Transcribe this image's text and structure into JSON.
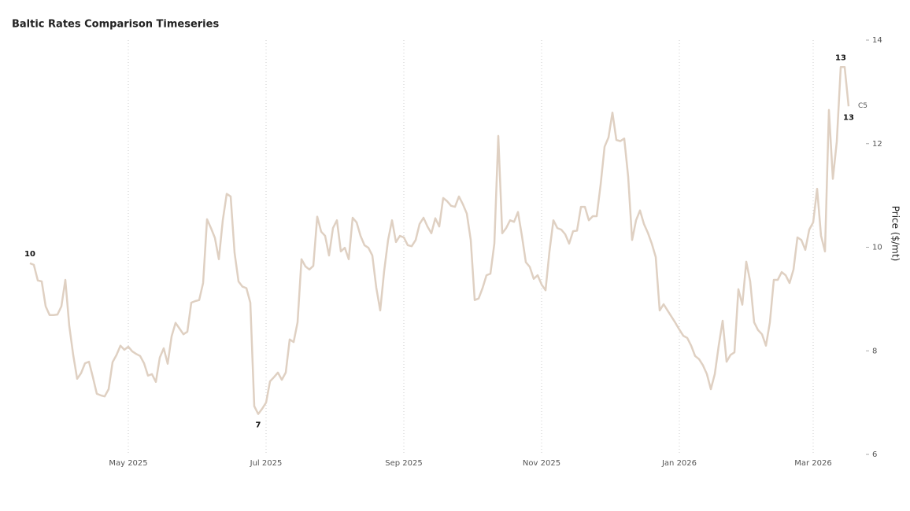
{
  "chart_data": {
    "type": "line",
    "title": "Baltic Rates Comparison Timeseries",
    "y_label": "Price ($/mt)",
    "categories": [
      null,
      null,
      null,
      null,
      null,
      null,
      null,
      null,
      null,
      null,
      null,
      null,
      null,
      null,
      null,
      null,
      null,
      null,
      null,
      null,
      null,
      null,
      null,
      null,
      null,
      "May 2025",
      null,
      null,
      null,
      null,
      null,
      null,
      null,
      null,
      null,
      null,
      null,
      null,
      null,
      null,
      null,
      null,
      null,
      null,
      null,
      null,
      null,
      null,
      null,
      null,
      null,
      null,
      null,
      null,
      null,
      null,
      null,
      null,
      null,
      null,
      "Jul 2025",
      null,
      null,
      null,
      null,
      null,
      null,
      null,
      null,
      null,
      null,
      null,
      null,
      null,
      null,
      null,
      null,
      null,
      null,
      null,
      null,
      null,
      null,
      null,
      null,
      null,
      null,
      null,
      null,
      null,
      null,
      null,
      null,
      null,
      null,
      "Sep 2025",
      null,
      null,
      null,
      null,
      null,
      null,
      null,
      null,
      null,
      null,
      null,
      null,
      null,
      null,
      null,
      null,
      null,
      null,
      null,
      null,
      null,
      null,
      null,
      null,
      null,
      null,
      null,
      null,
      null,
      null,
      null,
      null,
      null,
      null,
      "Nov 2025",
      null,
      null,
      null,
      null,
      null,
      null,
      null,
      null,
      null,
      null,
      null,
      null,
      null,
      null,
      null,
      null,
      null,
      null,
      null,
      null,
      null,
      null,
      null,
      null,
      null,
      null,
      null,
      null,
      null,
      null,
      null,
      null,
      null,
      null,
      "Jan 2026",
      null,
      null,
      null,
      null,
      null,
      null,
      null,
      null,
      null,
      null,
      null,
      null,
      null,
      null,
      null,
      null,
      null,
      null,
      null,
      null,
      null,
      null,
      null,
      null,
      null,
      null,
      null,
      null,
      null,
      null,
      null,
      null,
      null,
      "Mar 2026",
      null,
      null,
      null,
      null,
      null,
      null,
      null,
      null,
      null
    ],
    "series": [
      {
        "name": "C5",
        "color": "#dfd0c2",
        "values": [
          9.69,
          9.66,
          9.36,
          9.34,
          8.86,
          8.69,
          8.69,
          8.7,
          8.86,
          9.37,
          8.48,
          7.92,
          7.46,
          7.57,
          7.76,
          7.79,
          7.49,
          7.17,
          7.14,
          7.12,
          7.26,
          7.78,
          7.92,
          8.1,
          8.02,
          8.08,
          7.99,
          7.94,
          7.9,
          7.76,
          7.52,
          7.55,
          7.4,
          7.87,
          8.05,
          7.75,
          8.28,
          8.54,
          8.43,
          8.32,
          8.37,
          8.93,
          8.96,
          8.98,
          9.31,
          10.54,
          10.37,
          10.18,
          9.77,
          10.52,
          11.03,
          10.98,
          9.89,
          9.34,
          9.24,
          9.21,
          8.93,
          6.93,
          6.78,
          6.88,
          7.0,
          7.41,
          7.49,
          7.58,
          7.44,
          7.58,
          8.22,
          8.17,
          8.55,
          9.77,
          9.63,
          9.57,
          9.64,
          10.59,
          10.3,
          10.22,
          9.84,
          10.37,
          10.52,
          9.92,
          9.99,
          9.77,
          10.57,
          10.48,
          10.22,
          10.04,
          9.99,
          9.84,
          9.22,
          8.78,
          9.54,
          10.14,
          10.52,
          10.1,
          10.22,
          10.19,
          10.04,
          10.02,
          10.14,
          10.45,
          10.57,
          10.4,
          10.27,
          10.56,
          10.4,
          10.95,
          10.89,
          10.8,
          10.78,
          10.98,
          10.83,
          10.65,
          10.14,
          8.98,
          9.01,
          9.21,
          9.46,
          9.49,
          10.07,
          12.15,
          10.27,
          10.37,
          10.52,
          10.49,
          10.68,
          10.22,
          9.71,
          9.62,
          9.39,
          9.46,
          9.28,
          9.17,
          9.92,
          10.52,
          10.37,
          10.34,
          10.25,
          10.07,
          10.31,
          10.32,
          10.78,
          10.78,
          10.52,
          10.6,
          10.6,
          11.21,
          11.94,
          12.12,
          12.6,
          12.07,
          12.05,
          12.1,
          11.36,
          10.14,
          10.52,
          10.71,
          10.45,
          10.28,
          10.07,
          9.81,
          8.78,
          8.9,
          8.78,
          8.66,
          8.54,
          8.41,
          8.29,
          8.25,
          8.1,
          7.9,
          7.84,
          7.72,
          7.55,
          7.26,
          7.55,
          8.1,
          8.58,
          7.79,
          7.92,
          7.97,
          9.19,
          8.89,
          9.72,
          9.34,
          8.55,
          8.4,
          8.32,
          8.1,
          8.55,
          9.37,
          9.37,
          9.52,
          9.46,
          9.31,
          9.57,
          10.19,
          10.14,
          9.95,
          10.34,
          10.48,
          11.13,
          10.22,
          9.92,
          12.65,
          11.32,
          12.04,
          13.48,
          13.48,
          12.72
        ],
        "value_labels": [
          "10",
          null,
          null,
          null,
          null,
          null,
          null,
          null,
          null,
          null,
          null,
          null,
          null,
          null,
          null,
          null,
          null,
          null,
          null,
          null,
          null,
          null,
          null,
          null,
          null,
          null,
          null,
          null,
          null,
          null,
          null,
          null,
          null,
          null,
          null,
          null,
          null,
          null,
          null,
          null,
          null,
          null,
          null,
          null,
          null,
          null,
          null,
          null,
          null,
          null,
          null,
          null,
          null,
          null,
          null,
          null,
          null,
          null,
          "7",
          null,
          null,
          null,
          null,
          null,
          null,
          null,
          null,
          null,
          null,
          null,
          null,
          null,
          null,
          null,
          null,
          null,
          null,
          null,
          null,
          null,
          null,
          null,
          null,
          null,
          null,
          null,
          null,
          null,
          null,
          null,
          null,
          null,
          null,
          null,
          null,
          null,
          null,
          null,
          null,
          null,
          null,
          null,
          null,
          null,
          null,
          null,
          null,
          null,
          null,
          null,
          null,
          null,
          null,
          null,
          null,
          null,
          null,
          null,
          null,
          null,
          null,
          null,
          null,
          null,
          null,
          null,
          null,
          null,
          null,
          null,
          null,
          null,
          null,
          null,
          null,
          null,
          null,
          null,
          null,
          null,
          null,
          null,
          null,
          null,
          null,
          null,
          null,
          null,
          null,
          null,
          null,
          null,
          null,
          null,
          null,
          null,
          null,
          null,
          null,
          null,
          null,
          null,
          null,
          null,
          null,
          null,
          null,
          null,
          null,
          null,
          null,
          null,
          null,
          null,
          null,
          null,
          null,
          null,
          null,
          null,
          null,
          null,
          null,
          null,
          null,
          null,
          null,
          null,
          null,
          null,
          null,
          null,
          null,
          null,
          null,
          null,
          null,
          null,
          null,
          null,
          null,
          null,
          null,
          null,
          null,
          null,
          "13",
          null,
          "13"
        ]
      }
    ],
    "ylim": [
      6,
      14
    ],
    "yticks": [
      6,
      8,
      10,
      12,
      14
    ],
    "y_axis_side": "right",
    "grid": "x-dotted"
  }
}
